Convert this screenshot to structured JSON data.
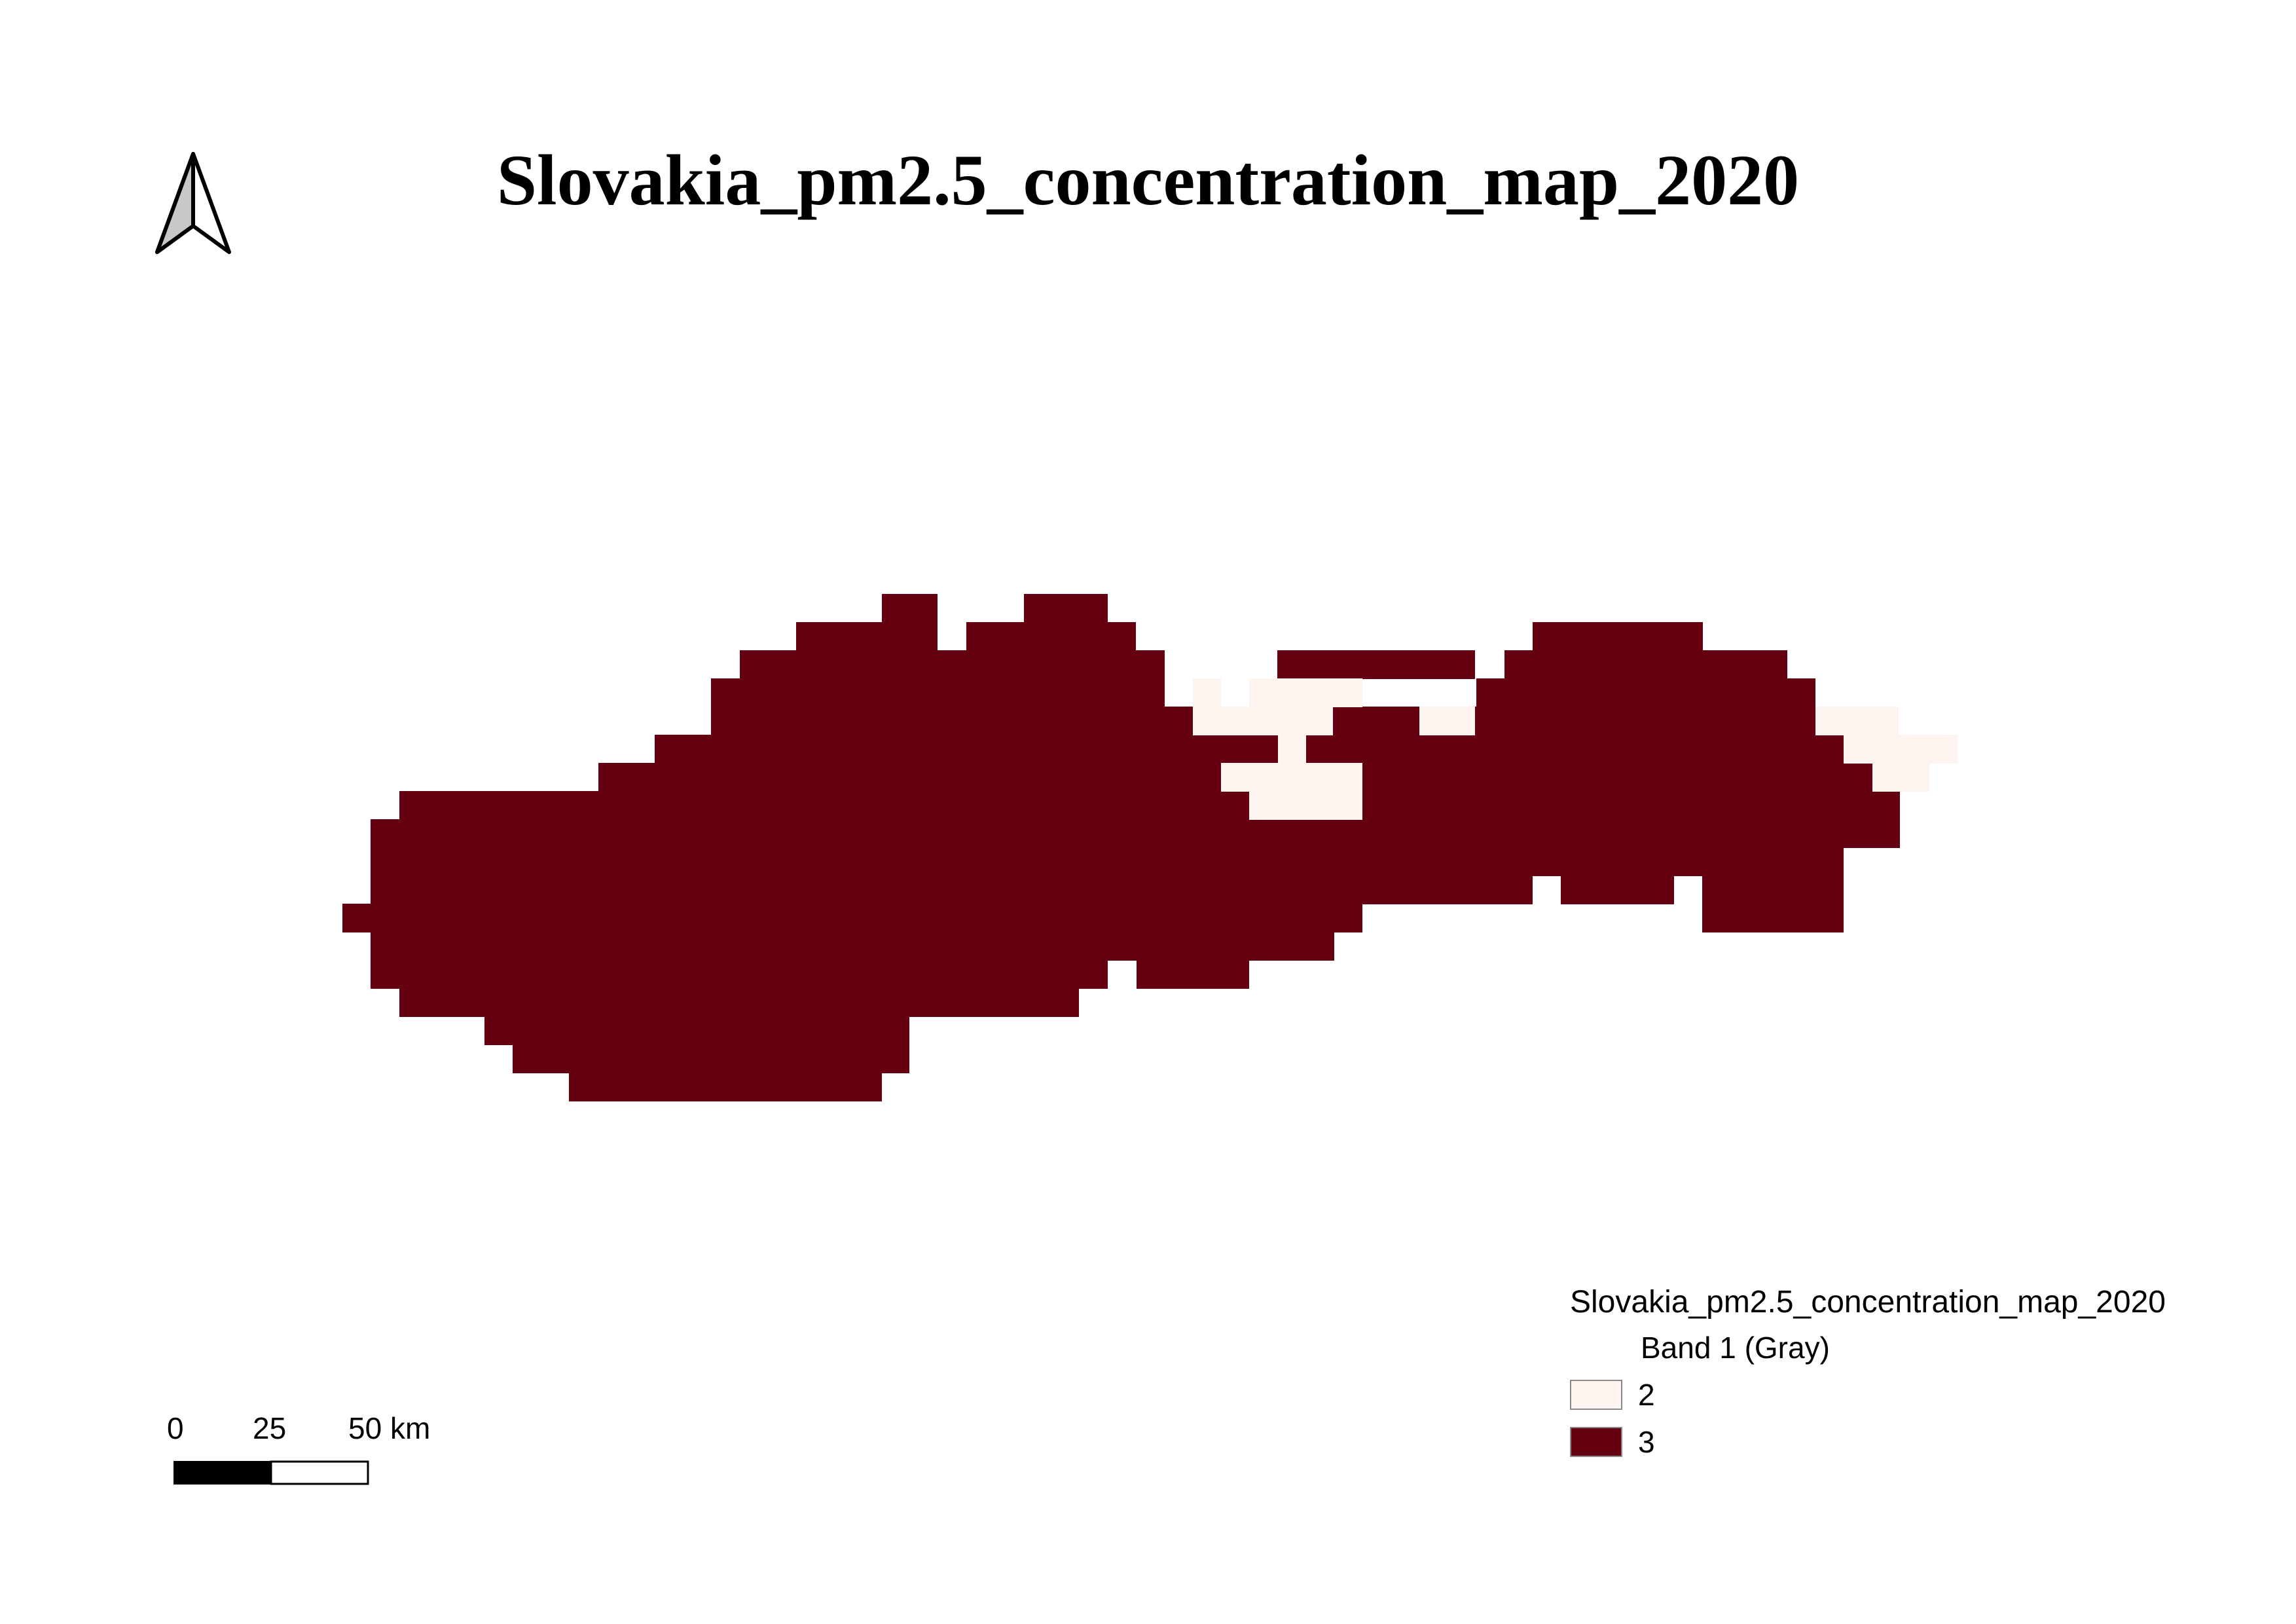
{
  "map": {
    "title": "Slovakia_pm2.5_concentration_map_2020",
    "colors": {
      "class_2": "#fdf3ef",
      "class_3": "#650010"
    }
  },
  "north_arrow": {
    "icon": "north-arrow-icon"
  },
  "scale_bar": {
    "labels": [
      "0",
      "25",
      "50 km"
    ]
  },
  "legend": {
    "layer_title": "Slovakia_pm2.5_concentration_map_2020",
    "band_label": "Band 1 (Gray)",
    "items": [
      {
        "label": "2",
        "color": "#fdf3ef"
      },
      {
        "label": "3",
        "color": "#650010"
      }
    ]
  }
}
